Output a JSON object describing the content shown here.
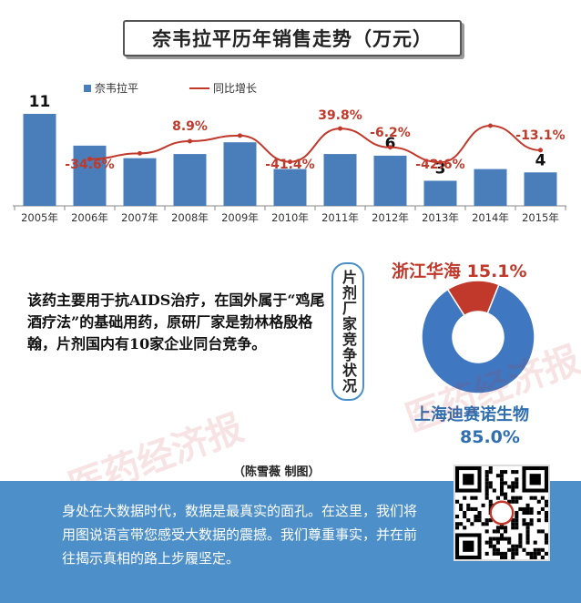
{
  "title": "奈韦拉平历年销售走势（万元）",
  "chart_data": {
    "type": "bar",
    "categories": [
      "2005年",
      "2006年",
      "2007年",
      "2008年",
      "2009年",
      "2010年",
      "2011年",
      "2012年",
      "2013年",
      "2014年",
      "2015年"
    ],
    "series": [
      {
        "name": "奈韦拉平",
        "values": [
          11,
          7.2,
          5.7,
          6.2,
          7.6,
          4.4,
          6.2,
          6,
          3,
          4.4,
          4
        ],
        "color": "#4a7ebb"
      },
      {
        "name": "同比增长",
        "values": [
          null,
          -34.6,
          -20.8,
          8.9,
          22.6,
          -41.4,
          39.8,
          -6.2,
          -42.6,
          46.7,
          -13.1
        ],
        "color": "#c0392b",
        "type": "line"
      }
    ],
    "bar_labels": [
      {
        "index": 0,
        "text": "11"
      },
      {
        "index": 7,
        "text": "6"
      },
      {
        "index": 8,
        "text": "3"
      },
      {
        "index": 10,
        "text": "4"
      }
    ],
    "line_labels": [
      {
        "index": 1,
        "text": "-34.6%"
      },
      {
        "index": 3,
        "text": "8.9%"
      },
      {
        "index": 5,
        "text": "-41.4%"
      },
      {
        "index": 6,
        "text": "39.8%"
      },
      {
        "index": 7,
        "text": "-6.2%"
      },
      {
        "index": 8,
        "text": "-42.6%"
      },
      {
        "index": 10,
        "text": "-13.1%"
      }
    ],
    "ylim": [
      0,
      12
    ],
    "grid": false,
    "legend": "top-left"
  },
  "description": "该药主要用于抗AIDS治疗，在国外属于“鸡尾酒疗法”的基础用药，原研厂家是勃林格殷格翰，片剂国内有10家企业同台竞争。",
  "competition_label": "片剂厂家竞争状况",
  "pie": {
    "type": "pie",
    "slices": [
      {
        "name": "浙江华海",
        "value": 15.1,
        "label": "15.1%",
        "color": "#c0392b"
      },
      {
        "name": "上海迪赛诺生物",
        "value": 85.0,
        "label": "85.0%",
        "color": "#3f78c0"
      }
    ]
  },
  "credit": "（陈雪薇  制图）",
  "watermark": "医药经济报",
  "footer_text": "身处在大数据时代，数据是最真实的面孔。在这里，我们将用图说语言带您感受大数据的震撼。我们尊重事实，并在前往揭示真相的路上步履坚定。"
}
